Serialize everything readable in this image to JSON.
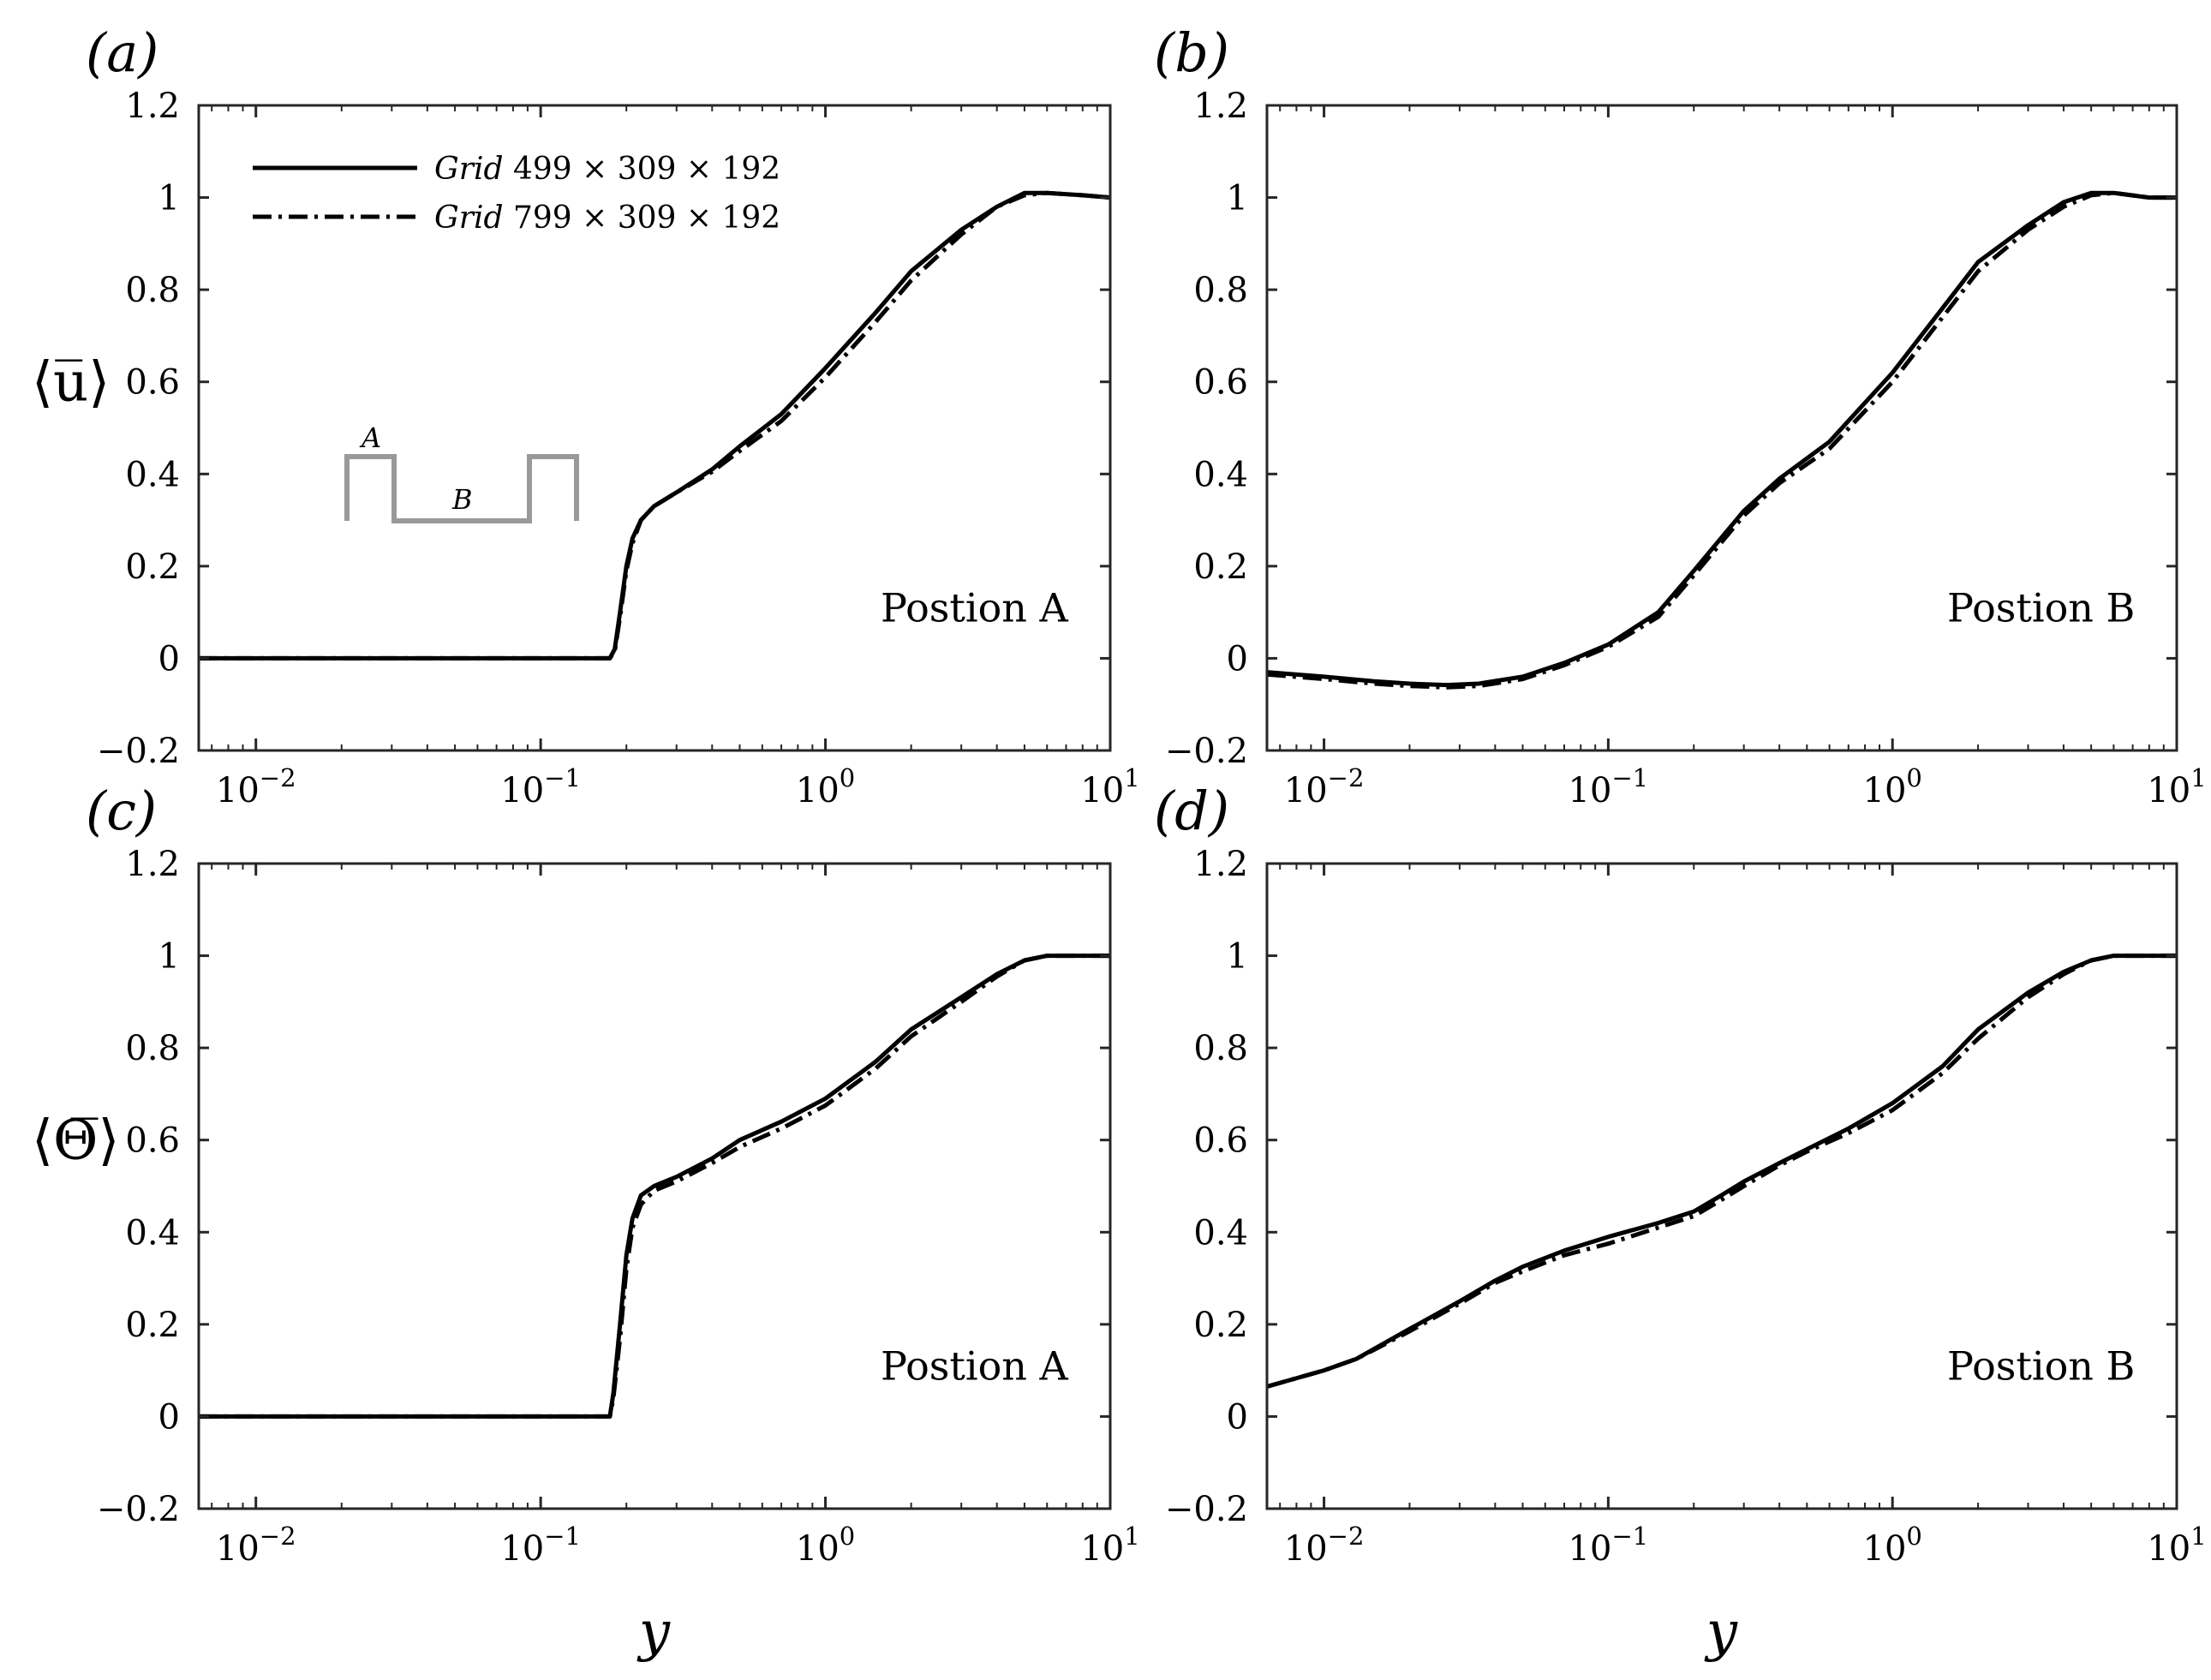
{
  "figure": {
    "xlabel": "y",
    "legend": [
      {
        "name": "Grid",
        "dims": " 499 × 309 × 192",
        "style": "solid"
      },
      {
        "name": "Grid",
        "dims": " 799 × 309 × 192",
        "style": "dashdot"
      }
    ],
    "inset": {
      "label_a": "A",
      "label_b": "B",
      "color": "#999999"
    },
    "colors": {
      "line": "#000000",
      "inset": "#999999"
    }
  },
  "chart_data": [
    {
      "panel": "(a)",
      "type": "line",
      "xscale": "log",
      "xlim": [
        0.0063,
        10
      ],
      "ylim": [
        -0.2,
        1.2
      ],
      "xticks": [
        0.01,
        0.1,
        1,
        10
      ],
      "xtick_labels": [
        "10−2",
        "10−1",
        "100",
        "101"
      ],
      "yticks": [
        -0.2,
        0,
        0.2,
        0.4,
        0.6,
        0.8,
        1,
        1.2
      ],
      "ytick_labels": [
        "−0.2",
        "0",
        "0.2",
        "0.4",
        "0.6",
        "0.8",
        "1",
        "1.2"
      ],
      "ylabel": "⟨u̅⟩",
      "xlabel": "",
      "annotation": "Postion A",
      "show_legend": true,
      "show_inset": true,
      "series": [
        {
          "name": "Grid 499 × 309 × 192",
          "style": "solid",
          "x": [
            0.0063,
            0.02,
            0.1,
            0.175,
            0.182,
            0.19,
            0.2,
            0.21,
            0.225,
            0.25,
            0.3,
            0.4,
            0.5,
            0.7,
            1.0,
            1.5,
            2.0,
            3.0,
            4.0,
            5.0,
            6.0,
            8.0,
            10.0
          ],
          "y": [
            0,
            0,
            0,
            0,
            0.02,
            0.1,
            0.2,
            0.26,
            0.3,
            0.33,
            0.36,
            0.41,
            0.46,
            0.53,
            0.63,
            0.75,
            0.84,
            0.93,
            0.98,
            1.01,
            1.01,
            1.005,
            1.0
          ]
        },
        {
          "name": "Grid 799 × 309 × 192",
          "style": "dashdot",
          "x": [
            0.0063,
            0.02,
            0.1,
            0.175,
            0.182,
            0.19,
            0.2,
            0.21,
            0.225,
            0.25,
            0.3,
            0.4,
            0.5,
            0.7,
            1.0,
            1.5,
            2.0,
            3.0,
            4.0,
            5.0,
            6.0,
            8.0,
            10.0
          ],
          "y": [
            0,
            0,
            0,
            0,
            0.015,
            0.09,
            0.19,
            0.25,
            0.3,
            0.33,
            0.36,
            0.405,
            0.45,
            0.515,
            0.61,
            0.73,
            0.82,
            0.92,
            0.98,
            1.005,
            1.01,
            1.005,
            1.0
          ]
        }
      ]
    },
    {
      "panel": "(b)",
      "type": "line",
      "xscale": "log",
      "xlim": [
        0.0063,
        10
      ],
      "ylim": [
        -0.2,
        1.2
      ],
      "xticks": [
        0.01,
        0.1,
        1,
        10
      ],
      "xtick_labels": [
        "10−2",
        "10−1",
        "100",
        "101"
      ],
      "yticks": [
        -0.2,
        0,
        0.2,
        0.4,
        0.6,
        0.8,
        1,
        1.2
      ],
      "ytick_labels": [
        "−0.2",
        "0",
        "0.2",
        "0.4",
        "0.6",
        "0.8",
        "1",
        "1.2"
      ],
      "ylabel": "",
      "xlabel": "",
      "annotation": "Postion B",
      "show_legend": false,
      "show_inset": false,
      "series": [
        {
          "name": "Grid 499 × 309 × 192",
          "style": "solid",
          "x": [
            0.0063,
            0.01,
            0.015,
            0.02,
            0.027,
            0.035,
            0.05,
            0.07,
            0.1,
            0.15,
            0.2,
            0.3,
            0.4,
            0.6,
            1.0,
            1.5,
            2.0,
            3.0,
            4.0,
            5.0,
            6.0,
            8.0,
            10.0
          ],
          "y": [
            -0.03,
            -0.04,
            -0.05,
            -0.055,
            -0.058,
            -0.055,
            -0.04,
            -0.01,
            0.03,
            0.1,
            0.19,
            0.32,
            0.39,
            0.47,
            0.62,
            0.76,
            0.86,
            0.94,
            0.99,
            1.01,
            1.01,
            1.0,
            1.0
          ]
        },
        {
          "name": "Grid 799 × 309 × 192",
          "style": "dashdot",
          "x": [
            0.0063,
            0.01,
            0.015,
            0.02,
            0.027,
            0.035,
            0.05,
            0.07,
            0.1,
            0.15,
            0.2,
            0.3,
            0.4,
            0.6,
            1.0,
            1.5,
            2.0,
            3.0,
            4.0,
            5.0,
            6.0,
            8.0,
            10.0
          ],
          "y": [
            -0.035,
            -0.045,
            -0.055,
            -0.06,
            -0.063,
            -0.06,
            -0.045,
            -0.015,
            0.025,
            0.09,
            0.18,
            0.31,
            0.38,
            0.455,
            0.6,
            0.74,
            0.84,
            0.93,
            0.98,
            1.005,
            1.01,
            1.0,
            1.0
          ]
        }
      ]
    },
    {
      "panel": "(c)",
      "type": "line",
      "xscale": "log",
      "xlim": [
        0.0063,
        10
      ],
      "ylim": [
        -0.2,
        1.2
      ],
      "xticks": [
        0.01,
        0.1,
        1,
        10
      ],
      "xtick_labels": [
        "10−2",
        "10−1",
        "100",
        "101"
      ],
      "yticks": [
        -0.2,
        0,
        0.2,
        0.4,
        0.6,
        0.8,
        1,
        1.2
      ],
      "ytick_labels": [
        "−0.2",
        "0",
        "0.2",
        "0.4",
        "0.6",
        "0.8",
        "1",
        "1.2"
      ],
      "ylabel": "⟨Θ̅⟩",
      "xlabel": "y",
      "annotation": "Postion A",
      "show_legend": false,
      "show_inset": false,
      "series": [
        {
          "name": "Grid 499 × 309 × 192",
          "style": "solid",
          "x": [
            0.0063,
            0.02,
            0.1,
            0.175,
            0.18,
            0.19,
            0.2,
            0.21,
            0.225,
            0.25,
            0.3,
            0.4,
            0.5,
            0.7,
            1.0,
            1.5,
            2.0,
            3.0,
            4.0,
            5.0,
            6.0,
            8.0,
            10.0
          ],
          "y": [
            0,
            0,
            0,
            0,
            0.05,
            0.2,
            0.35,
            0.43,
            0.48,
            0.5,
            0.52,
            0.56,
            0.6,
            0.64,
            0.69,
            0.77,
            0.84,
            0.91,
            0.96,
            0.99,
            1.0,
            1.0,
            1.0
          ]
        },
        {
          "name": "Grid 799 × 309 × 192",
          "style": "dashdot",
          "x": [
            0.0063,
            0.02,
            0.1,
            0.175,
            0.18,
            0.19,
            0.2,
            0.21,
            0.225,
            0.25,
            0.3,
            0.4,
            0.5,
            0.7,
            1.0,
            1.5,
            2.0,
            3.0,
            4.0,
            5.0,
            6.0,
            8.0,
            10.0
          ],
          "y": [
            0,
            0,
            0,
            0,
            0.04,
            0.17,
            0.32,
            0.41,
            0.46,
            0.49,
            0.51,
            0.55,
            0.585,
            0.625,
            0.675,
            0.755,
            0.825,
            0.9,
            0.955,
            0.99,
            1.0,
            1.0,
            1.0
          ]
        }
      ]
    },
    {
      "panel": "(d)",
      "type": "line",
      "xscale": "log",
      "xlim": [
        0.0063,
        10
      ],
      "ylim": [
        -0.2,
        1.2
      ],
      "xticks": [
        0.01,
        0.1,
        1,
        10
      ],
      "xtick_labels": [
        "10−2",
        "10−1",
        "100",
        "101"
      ],
      "yticks": [
        -0.2,
        0,
        0.2,
        0.4,
        0.6,
        0.8,
        1,
        1.2
      ],
      "ytick_labels": [
        "−0.2",
        "0",
        "0.2",
        "0.4",
        "0.6",
        "0.8",
        "1",
        "1.2"
      ],
      "ylabel": "",
      "xlabel": "y",
      "annotation": "Postion B",
      "show_legend": false,
      "show_inset": false,
      "series": [
        {
          "name": "Grid 499 × 309 × 192",
          "style": "solid",
          "x": [
            0.0063,
            0.01,
            0.013,
            0.02,
            0.03,
            0.04,
            0.05,
            0.07,
            0.1,
            0.15,
            0.2,
            0.25,
            0.3,
            0.4,
            0.5,
            0.7,
            1.0,
            1.5,
            2.0,
            3.0,
            4.0,
            5.0,
            6.0,
            8.0,
            10.0
          ],
          "y": [
            0.065,
            0.1,
            0.125,
            0.19,
            0.25,
            0.295,
            0.325,
            0.36,
            0.39,
            0.42,
            0.445,
            0.48,
            0.51,
            0.55,
            0.58,
            0.625,
            0.68,
            0.76,
            0.84,
            0.92,
            0.965,
            0.99,
            1.0,
            1.0,
            1.0
          ]
        },
        {
          "name": "Grid 799 × 309 × 192",
          "style": "dashdot",
          "x": [
            0.0063,
            0.01,
            0.013,
            0.02,
            0.03,
            0.04,
            0.05,
            0.07,
            0.1,
            0.15,
            0.2,
            0.25,
            0.3,
            0.4,
            0.5,
            0.7,
            1.0,
            1.5,
            2.0,
            3.0,
            4.0,
            5.0,
            6.0,
            8.0,
            10.0
          ],
          "y": [
            0.065,
            0.1,
            0.125,
            0.185,
            0.245,
            0.29,
            0.315,
            0.35,
            0.375,
            0.41,
            0.435,
            0.47,
            0.5,
            0.545,
            0.575,
            0.615,
            0.665,
            0.745,
            0.82,
            0.91,
            0.96,
            0.99,
            1.0,
            1.0,
            1.0
          ]
        }
      ]
    }
  ]
}
